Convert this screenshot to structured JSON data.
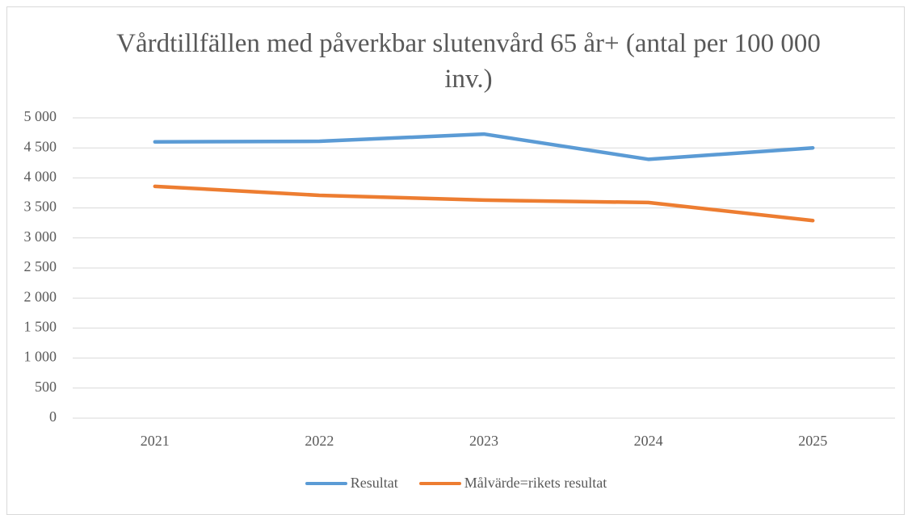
{
  "chart_data": {
    "type": "line",
    "title": "Vårdtillfällen med påverkbar slutenvård 65 år+ (antal per 100 000 inv.)",
    "categories": [
      "2021",
      "2022",
      "2023",
      "2024",
      "2025"
    ],
    "series": [
      {
        "name": "Resultat",
        "color": "#5b9bd5",
        "values": [
          4600,
          4610,
          4730,
          4310,
          4500
        ]
      },
      {
        "name": "Målvärde=rikets resultat",
        "color": "#ed7d31",
        "values": [
          3860,
          3710,
          3630,
          3590,
          3290
        ]
      }
    ],
    "ylim": [
      0,
      5000
    ],
    "yticks": [
      0,
      500,
      {
        "value": 1000,
        "label": "1 000"
      },
      {
        "value": 1500,
        "label": "1 500"
      },
      {
        "value": 2000,
        "label": "2 000"
      },
      {
        "value": 2500,
        "label": "2 500"
      },
      {
        "value": 3000,
        "label": "3 000"
      },
      {
        "value": 3500,
        "label": "3 500"
      },
      {
        "value": 4000,
        "label": "4 000"
      },
      {
        "value": 4500,
        "label": "4 500"
      },
      {
        "value": 5000,
        "label": "5 000"
      }
    ],
    "grid": true,
    "legend": "bottom"
  }
}
